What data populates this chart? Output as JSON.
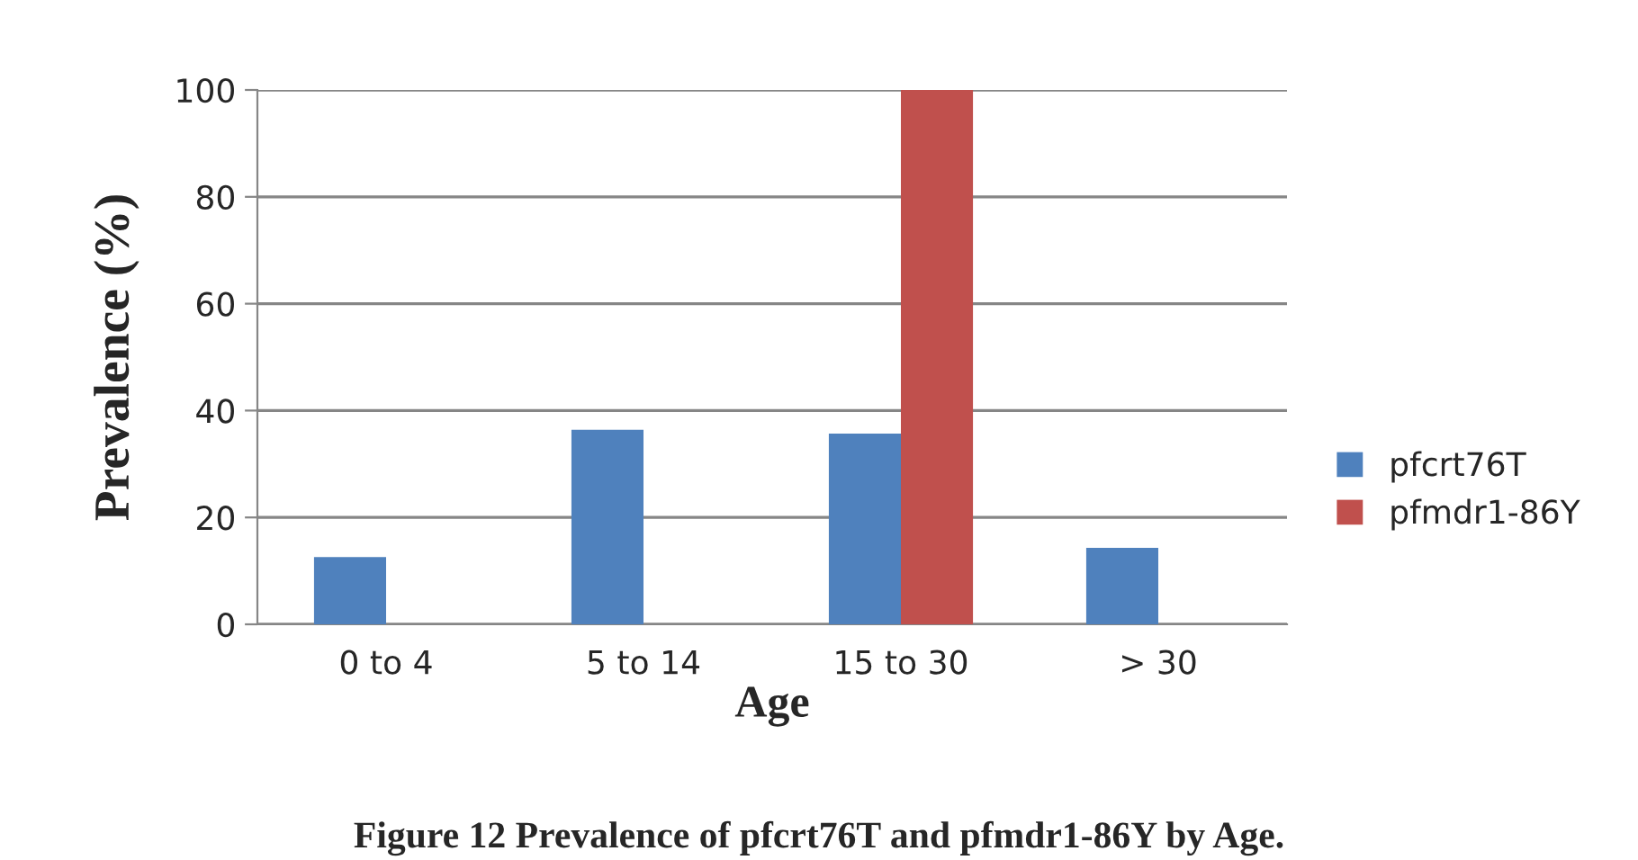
{
  "chart_data": {
    "type": "bar",
    "title": "Figure 12 Prevalence of pfcrt76T and pfmdr1-86Y by Age.",
    "xlabel": "Age",
    "ylabel": "Prevalence (%)",
    "categories": [
      "0 to 4",
      "5 to 14",
      "15 to 30",
      "> 30"
    ],
    "series": [
      {
        "name": "pfcrt76T",
        "color": "#4f81bd",
        "values": [
          12.6,
          36.4,
          35.7,
          14.3
        ]
      },
      {
        "name": "pfmdr1-86Y",
        "color": "#c0504d",
        "values": [
          null,
          null,
          100,
          null
        ]
      }
    ],
    "ylim": [
      0,
      100
    ],
    "yticks": [
      0,
      20,
      40,
      60,
      80,
      100
    ],
    "grid": "y",
    "legend": "right"
  }
}
